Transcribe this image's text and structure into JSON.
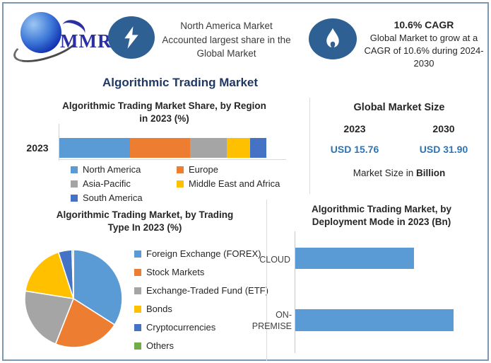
{
  "colors": {
    "frame_border": "#7C99B4",
    "title_navy": "#1F3864",
    "value_blue": "#2E74B5",
    "badge_blue": "#2E6093",
    "bar_blue": "#5B9BD5"
  },
  "header": {
    "logo_text": "MMR",
    "left_badge_icon": "lightning-icon",
    "left_note": "North America Market\nAccounted largest share in the\nGlobal Market",
    "right_badge_icon": "flame-icon",
    "right_title": "10.6% CAGR",
    "right_note": "Global Market to grow at a\nCAGR of 10.6% during 2024-\n2030"
  },
  "main_title": "Algorithmic Trading Market",
  "market_size": {
    "title": "Global Market Size",
    "columns": [
      {
        "year": "2023",
        "value": "USD 15.76"
      },
      {
        "year": "2030",
        "value": "USD 31.90"
      }
    ],
    "note_prefix": "Market Size in ",
    "note_bold": "Billion"
  },
  "chart_data": [
    {
      "type": "bar",
      "subtype": "stacked-horizontal",
      "title": "Algorithmic Trading Market Share, by Region\nin 2023 (%)",
      "categories": [
        "2023"
      ],
      "unit": "%",
      "xlim": [
        0,
        100
      ],
      "grid": false,
      "legend_position": "bottom",
      "series": [
        {
          "name": "North America",
          "values": [
            34
          ],
          "color": "#5B9BD5"
        },
        {
          "name": "Europe",
          "values": [
            29
          ],
          "color": "#ED7D31"
        },
        {
          "name": "Asia-Pacific",
          "values": [
            18
          ],
          "color": "#A5A5A5"
        },
        {
          "name": "Middle East and Africa",
          "values": [
            11
          ],
          "color": "#FFC000"
        },
        {
          "name": "South America",
          "values": [
            8
          ],
          "color": "#4472C4"
        }
      ]
    },
    {
      "type": "pie",
      "title": "Algorithmic Trading Market, by Trading\nType In 2023 (%)",
      "unit": "%",
      "legend_position": "right",
      "labels": [
        "Foreign Exchange (FOREX)",
        "Stock Markets",
        "Exchange-Traded Fund (ETF)",
        "Bonds",
        "Cryptocurrencies",
        "Others"
      ],
      "values": [
        34,
        22,
        21.5,
        17.5,
        4.5,
        0.5
      ],
      "colors": [
        "#5B9BD5",
        "#ED7D31",
        "#A5A5A5",
        "#FFC000",
        "#4472C4",
        "#70AD47"
      ]
    },
    {
      "type": "bar",
      "subtype": "horizontal",
      "title": "Algorithmic Trading Market, by\nDeployment Mode in 2023 (Bn)",
      "unit": "Bn",
      "grid": false,
      "legend_position": "none",
      "categories": [
        "CLOUD",
        "ON-PREMISE"
      ],
      "values_relative": [
        75,
        100
      ],
      "color": "#5B9BD5"
    }
  ]
}
